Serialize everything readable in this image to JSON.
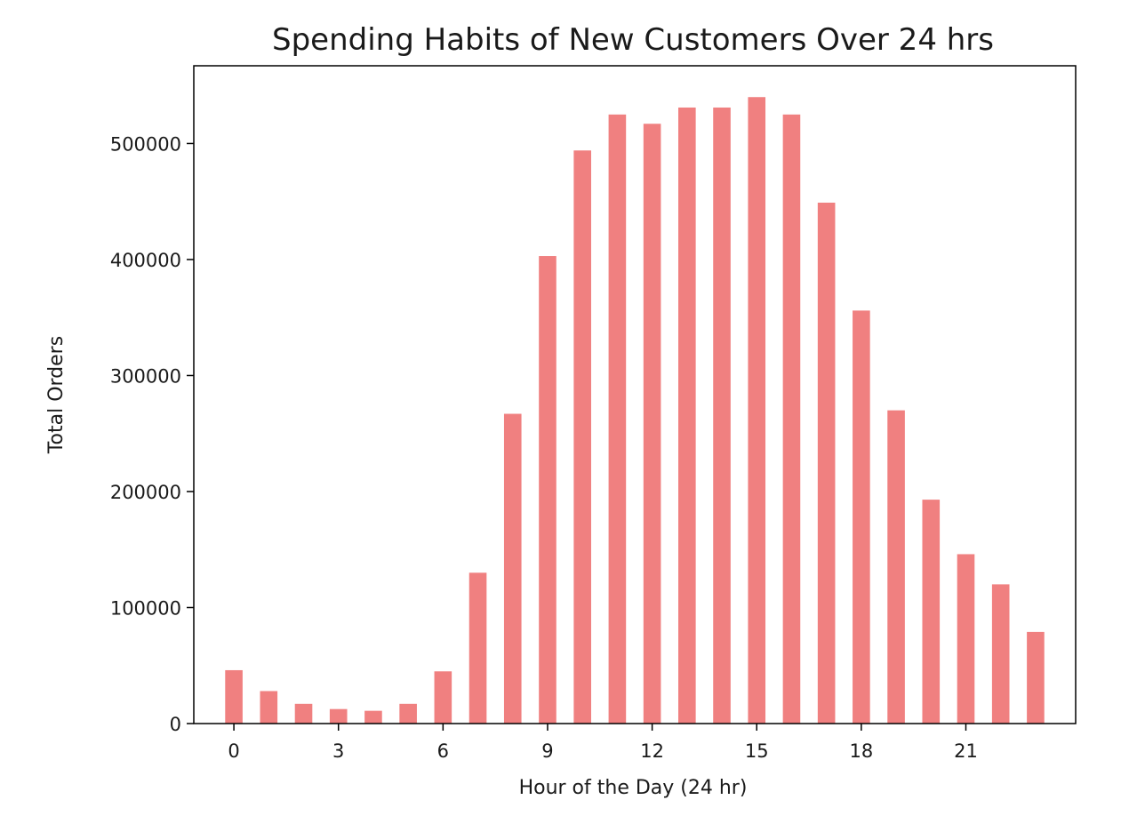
{
  "chart_data": {
    "type": "bar",
    "title": "Spending Habits of New Customers Over 24 hrs",
    "xlabel": "Hour of the Day (24 hr)",
    "ylabel": "Total Orders",
    "categories": [
      0,
      1,
      2,
      3,
      4,
      5,
      6,
      7,
      8,
      9,
      10,
      11,
      12,
      13,
      14,
      15,
      16,
      17,
      18,
      19,
      20,
      21,
      22,
      23
    ],
    "values": [
      46000,
      28000,
      17000,
      12500,
      11000,
      17000,
      45000,
      130000,
      267000,
      403000,
      494000,
      525000,
      517000,
      531000,
      531000,
      540000,
      525000,
      449000,
      356000,
      270000,
      193000,
      146000,
      120000,
      79000
    ],
    "xticks": [
      0,
      3,
      6,
      9,
      12,
      15,
      18,
      21
    ],
    "yticks": [
      0,
      100000,
      200000,
      300000,
      400000,
      500000
    ],
    "xlim": [
      -1.15,
      24.15
    ],
    "ylim": [
      0,
      567000
    ],
    "bar_color": "#f08080",
    "grid": false
  }
}
